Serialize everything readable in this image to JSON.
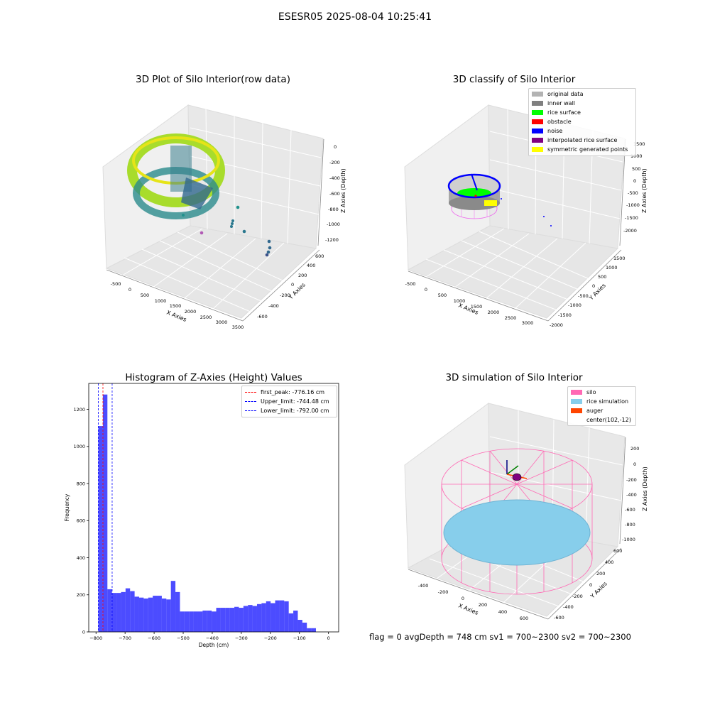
{
  "suptitle": "ESESR05 2025-08-04 10:25:41",
  "footer": "flag = 0     avgDepth = 748 cm  sv1 = 700~2300  sv2 = 700~2300",
  "chart_data": [
    {
      "type": "scatter",
      "title": "3D Plot of Silo Interior(row data)",
      "xlabel": "X Axies",
      "ylabel": "Y Axies",
      "zlabel": "Z Axies (Depth)",
      "x_ticks": [
        "-500",
        "0",
        "500",
        "1000",
        "1500",
        "2000",
        "2500",
        "3000",
        "3500"
      ],
      "y_ticks": [
        "-600",
        "-400",
        "-200",
        "0",
        "200",
        "400",
        "600"
      ],
      "z_ticks": [
        "0",
        "-200",
        "-400",
        "-600",
        "-800",
        "-1000",
        "-1200"
      ],
      "colormap": "viridis"
    },
    {
      "type": "scatter",
      "title": "3D classify of Silo Interior",
      "xlabel": "X Axies",
      "ylabel": "Y Axies",
      "zlabel": "Z Axies (Depth)",
      "x_ticks": [
        "-500",
        "0",
        "500",
        "1000",
        "1500",
        "2000",
        "2500",
        "3000"
      ],
      "y_ticks": [
        "-2000",
        "-1500",
        "-1000",
        "-500",
        "0",
        "500",
        "1000",
        "1500"
      ],
      "z_ticks": [
        "1500",
        "1000",
        "500",
        "0",
        "-500",
        "-1000",
        "-1500",
        "-2000"
      ],
      "legend": [
        {
          "label": "original data",
          "color": "#b3b3b3"
        },
        {
          "label": "inner wall",
          "color": "#808080"
        },
        {
          "label": "rice surface",
          "color": "#00ff00"
        },
        {
          "label": "obstacle",
          "color": "#ff0000"
        },
        {
          "label": "noise",
          "color": "#0000ff"
        },
        {
          "label": "interpolated rice surface",
          "color": "#800080"
        },
        {
          "label": "symmetric generated points",
          "color": "#ffff00"
        }
      ]
    },
    {
      "type": "bar",
      "title": "Histogram of Z-Axies (Height) Values",
      "xlabel": "Depth (cm)",
      "ylabel": "Frequency",
      "xlim": [
        -825,
        35
      ],
      "ylim": [
        0,
        1340
      ],
      "x_ticks": [
        -800,
        -700,
        -600,
        -500,
        -400,
        -300,
        -200,
        -100,
        0
      ],
      "y_ticks": [
        0,
        200,
        400,
        600,
        800,
        1000,
        1200
      ],
      "bin_width": 15.6,
      "bin_start": -792,
      "color": "#0000ff",
      "values": [
        1110,
        1280,
        230,
        210,
        210,
        215,
        235,
        220,
        190,
        185,
        180,
        185,
        195,
        195,
        180,
        175,
        275,
        215,
        110,
        110,
        110,
        110,
        110,
        115,
        115,
        110,
        130,
        130,
        130,
        130,
        135,
        130,
        140,
        145,
        140,
        150,
        155,
        165,
        155,
        170,
        170,
        165,
        100,
        115,
        65,
        50,
        20,
        20
      ],
      "vlines": [
        {
          "label": "first_peak: -776.16 cm",
          "x": -776.16,
          "color": "#ff0000"
        },
        {
          "label": "Upper_limit: -744.48 cm",
          "x": -744.48,
          "color": "#0000ff"
        },
        {
          "label": "Lower_limit: -792.00 cm",
          "x": -792.0,
          "color": "#0000ff"
        }
      ]
    },
    {
      "type": "scatter",
      "title": "3D simulation of Silo Interior",
      "xlabel": "X Axies",
      "ylabel": "Y Axies",
      "zlabel": "Z Axies (Depth)",
      "x_ticks": [
        "-400",
        "-200",
        "0",
        "200",
        "400",
        "600"
      ],
      "y_ticks": [
        "-600",
        "-400",
        "-200",
        "0",
        "200",
        "400",
        "600"
      ],
      "z_ticks": [
        "200",
        "0",
        "-200",
        "-400",
        "-600",
        "-800",
        "-1000"
      ],
      "legend": [
        {
          "label": "silo",
          "color": "#ff69b4"
        },
        {
          "label": "rice simulation",
          "color": "#87ceeb"
        },
        {
          "label": "auger",
          "color": "#ff4500"
        },
        {
          "label": "center(102,-12)",
          "color": ""
        }
      ]
    }
  ]
}
